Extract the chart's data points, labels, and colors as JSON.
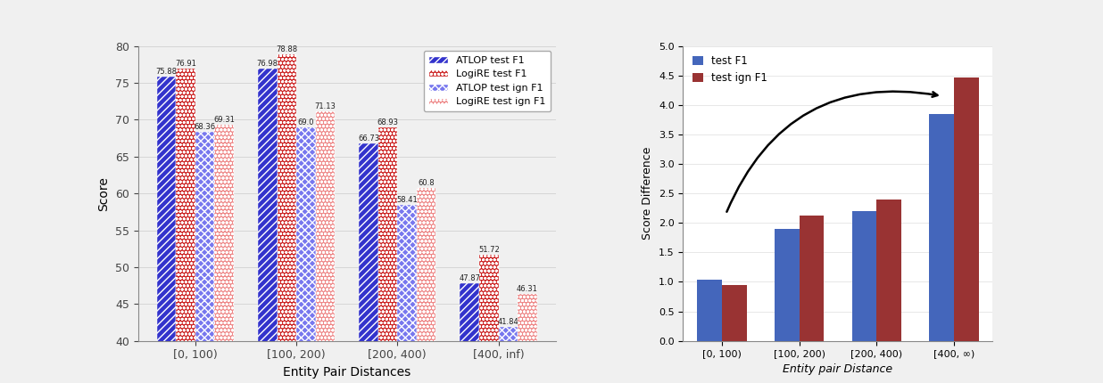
{
  "categories": [
    "[0, 100)",
    "[100, 200)",
    "[200, 400)",
    "[400, inf)"
  ],
  "categories_right": [
    "[0, 100)",
    "[100, 200)",
    "[200, 400)",
    "[400, ∞)"
  ],
  "atlop_test_f1": [
    75.88,
    76.98,
    66.73,
    47.87
  ],
  "logire_test_f1": [
    76.91,
    78.88,
    68.93,
    51.72
  ],
  "atlop_ign_f1": [
    68.36,
    69.0,
    58.41,
    41.84
  ],
  "logire_ign_f1": [
    69.31,
    71.13,
    60.8,
    46.31
  ],
  "diff_test_f1": [
    1.03,
    1.9,
    2.2,
    3.85
  ],
  "diff_ign_f1": [
    0.95,
    2.13,
    2.39,
    4.47
  ],
  "blue_solid": "#3333cc",
  "red_solid": "#cc2222",
  "blue_light": "#7777ee",
  "red_light": "#ee8888",
  "ylim_left": [
    40,
    80
  ],
  "ylim_right": [
    0,
    5
  ],
  "xlabel_left": "Entity Pair Distances",
  "ylabel_left": "Score",
  "xlabel_right": "Entity pair Distance",
  "ylabel_right": "Score Difference",
  "legend_labels": [
    "ATLOP test F1",
    "LogiRE test F1",
    "ATLOP test ign F1",
    "LogiRE test ign F1"
  ],
  "legend_labels_right": [
    "test F1",
    "test ign F1"
  ],
  "bar_width": 0.19,
  "right_blue": "#4466bb",
  "right_red": "#993333"
}
